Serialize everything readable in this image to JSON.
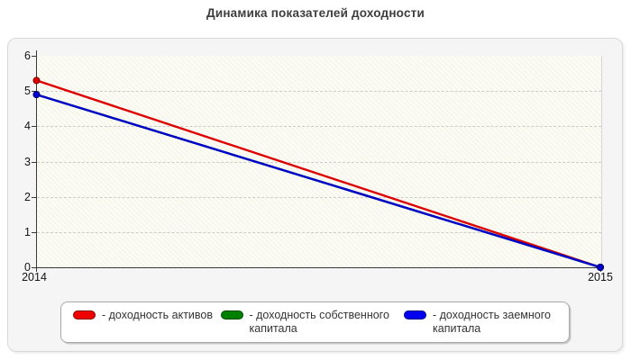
{
  "page": {
    "title": "Динамика показателей доходности"
  },
  "chart_data": {
    "type": "line",
    "title": "Динамика показателей доходности",
    "x": [
      "2014",
      "2015"
    ],
    "xlabel": "",
    "ylabel": "",
    "ylim": [
      0,
      6
    ],
    "yticks": [
      0,
      1,
      2,
      3,
      4,
      5,
      6
    ],
    "grid": "horizontal dashed gridlines at each integer",
    "legend_position": "bottom",
    "plot_background": "pale cream diagonal hatch",
    "series": [
      {
        "name": "доходность активов",
        "color": "#dd0000",
        "marker_edge": "#7e0000",
        "values": [
          5.3,
          0
        ]
      },
      {
        "name": "доходность собственного капитала",
        "color": "#008000",
        "marker_edge": "#004d00",
        "values": [
          4.9,
          0
        ],
        "visible_as_line": false
      },
      {
        "name": "доходность заемного капитала",
        "color": "#0000cc",
        "marker_edge": "#000080",
        "values": [
          4.9,
          0
        ]
      }
    ]
  },
  "legend": {
    "items": [
      {
        "label": "- доходность активов",
        "swatch_color": "#ee0000",
        "swatch_border": "#8b0000"
      },
      {
        "label": "- доходность собственного капитала",
        "swatch_color": "#008000",
        "swatch_border": "#004d00"
      },
      {
        "label": "- доходность заемного капитала",
        "swatch_color": "#0000ee",
        "swatch_border": "#00008b"
      }
    ]
  },
  "colors": {
    "title_text": "#3d3d3d",
    "axis": "#3a3a3a",
    "grid": "#cccccc",
    "tick_text": "#141414",
    "panel_bg": "#f5f5f5",
    "panel_border": "#d8d8d8",
    "legend_border": "#a8a8a8"
  }
}
